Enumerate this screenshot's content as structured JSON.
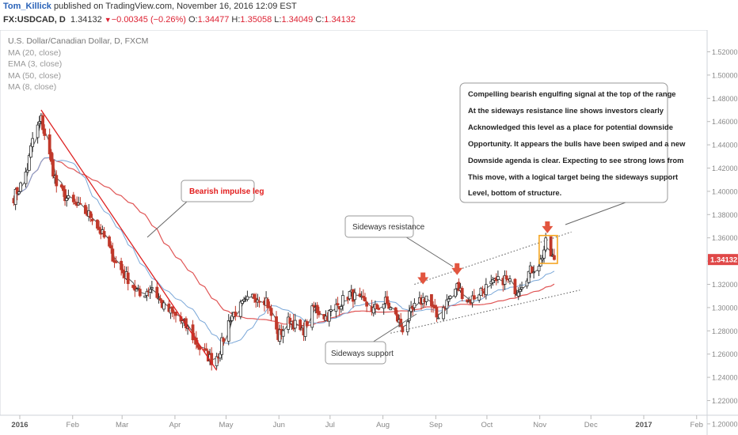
{
  "header": {
    "author": "Tom_Killick",
    "published": "published on TradingView.com, November 16, 2016 12:09 EST",
    "symbol": "FX:USDCAD, D",
    "last": "1.34132",
    "change": "−0.00345 (−0.26%)",
    "o": "1.34477",
    "h": "1.35058",
    "l": "1.34049",
    "c": "1.34132",
    "o_label": "O:",
    "h_label": "H:",
    "l_label": "L:",
    "c_label": "C:"
  },
  "legend": {
    "title": "U.S. Dollar/Canadian Dollar, D, FXCM",
    "studies": [
      "MA (20, close)",
      "EMA (3, close)",
      "MA (50, close)",
      "MA (8, close)"
    ]
  },
  "price_badge": "1.34132",
  "colors": {
    "up": "#2e2e2e",
    "down": "#c0392b",
    "ma50": "#e05555",
    "ma20": "#7aa7d8",
    "ema3": "#555555",
    "trend": "#d22",
    "badge": "#e04848",
    "highlight": "#f5a623",
    "arrow": "#e2553f"
  },
  "annotations": {
    "impulse": "Bearish impulse leg",
    "resistance": "Sideways resistance",
    "support": "Sideways support",
    "main": [
      "Compelling bearish engulfing signal at the top of the range",
      "At the sideways resistance line shows investors clearly",
      "Acknowledged this level as a place for potential downside",
      "Opportunity. It appears the bulls have been swiped and a new",
      "Downside agenda is clear. Expecting to see strong lows from",
      "This move, with a logical target being the sideways support",
      "Level, bottom of structure."
    ]
  },
  "chart_data": {
    "type": "candlestick",
    "symbol": "USDCAD",
    "timeframe": "D",
    "x_tick_labels": [
      "2016",
      "Feb",
      "Mar",
      "Apr",
      "May",
      "Jun",
      "Jul",
      "Aug",
      "Sep",
      "Oct",
      "Nov",
      "Dec",
      "2017",
      "Feb"
    ],
    "y_tick_labels": [
      "1.52000",
      "1.50000",
      "1.48000",
      "1.46000",
      "1.44000",
      "1.42000",
      "1.40000",
      "1.38000",
      "1.36000",
      "1.34000",
      "1.32000",
      "1.30000",
      "1.28000",
      "1.26000",
      "1.24000",
      "1.22000",
      "1.20000"
    ],
    "ylim": [
      1.185,
      1.535
    ],
    "grid": false,
    "last_price": 1.34132,
    "anchors": [
      {
        "date": "2016-01-04",
        "close": 1.395
      },
      {
        "date": "2016-01-08",
        "close": 1.405
      },
      {
        "date": "2016-01-12",
        "close": 1.42
      },
      {
        "date": "2016-01-15",
        "close": 1.445
      },
      {
        "date": "2016-01-20",
        "close": 1.462
      },
      {
        "date": "2016-01-25",
        "close": 1.43
      },
      {
        "date": "2016-01-29",
        "close": 1.405
      },
      {
        "date": "2016-02-05",
        "close": 1.392
      },
      {
        "date": "2016-02-12",
        "close": 1.385
      },
      {
        "date": "2016-02-19",
        "close": 1.378
      },
      {
        "date": "2016-02-26",
        "close": 1.36
      },
      {
        "date": "2016-03-04",
        "close": 1.338
      },
      {
        "date": "2016-03-11",
        "close": 1.325
      },
      {
        "date": "2016-03-18",
        "close": 1.31
      },
      {
        "date": "2016-03-25",
        "close": 1.318
      },
      {
        "date": "2016-04-01",
        "close": 1.3
      },
      {
        "date": "2016-04-08",
        "close": 1.293
      },
      {
        "date": "2016-04-15",
        "close": 1.282
      },
      {
        "date": "2016-04-22",
        "close": 1.265
      },
      {
        "date": "2016-04-29",
        "close": 1.255
      },
      {
        "date": "2016-05-03",
        "close": 1.26
      },
      {
        "date": "2016-05-10",
        "close": 1.292
      },
      {
        "date": "2016-05-17",
        "close": 1.302
      },
      {
        "date": "2016-05-24",
        "close": 1.31
      },
      {
        "date": "2016-05-31",
        "close": 1.307
      },
      {
        "date": "2016-06-07",
        "close": 1.275
      },
      {
        "date": "2016-06-14",
        "close": 1.29
      },
      {
        "date": "2016-06-21",
        "close": 1.278
      },
      {
        "date": "2016-06-28",
        "close": 1.3
      },
      {
        "date": "2016-07-05",
        "close": 1.292
      },
      {
        "date": "2016-07-12",
        "close": 1.302
      },
      {
        "date": "2016-07-19",
        "close": 1.312
      },
      {
        "date": "2016-07-26",
        "close": 1.305
      },
      {
        "date": "2016-08-02",
        "close": 1.298
      },
      {
        "date": "2016-08-09",
        "close": 1.305
      },
      {
        "date": "2016-08-16",
        "close": 1.29
      },
      {
        "date": "2016-08-19",
        "close": 1.282
      },
      {
        "date": "2016-08-26",
        "close": 1.3
      },
      {
        "date": "2016-09-02",
        "close": 1.31
      },
      {
        "date": "2016-09-08",
        "close": 1.292
      },
      {
        "date": "2016-09-14",
        "close": 1.305
      },
      {
        "date": "2016-09-20",
        "close": 1.318
      },
      {
        "date": "2016-09-27",
        "close": 1.305
      },
      {
        "date": "2016-10-04",
        "close": 1.315
      },
      {
        "date": "2016-10-11",
        "close": 1.32
      },
      {
        "date": "2016-10-18",
        "close": 1.325
      },
      {
        "date": "2016-10-25",
        "close": 1.315
      },
      {
        "date": "2016-11-01",
        "close": 1.33
      },
      {
        "date": "2016-11-08",
        "close": 1.34
      },
      {
        "date": "2016-11-11",
        "close": 1.355
      },
      {
        "date": "2016-11-14",
        "close": 1.345
      },
      {
        "date": "2016-11-16",
        "close": 1.341
      }
    ],
    "trendlines": [
      {
        "name": "bearish impulse leg",
        "from": {
          "date": "2016-01-20",
          "price": 1.47
        },
        "to": {
          "date": "2016-05-02",
          "price": 1.246
        }
      },
      {
        "name": "sideways resistance",
        "from": {
          "date": "2016-08-26",
          "price": 1.32
        },
        "to": {
          "date": "2016-11-26",
          "price": 1.365
        }
      },
      {
        "name": "sideways support",
        "from": {
          "date": "2016-08-12",
          "price": 1.278
        },
        "to": {
          "date": "2016-12-01",
          "price": 1.315
        }
      }
    ],
    "moving_averages": [
      "MA (20, close)",
      "EMA (3, close)",
      "MA (50, close)",
      "MA (8, close)"
    ]
  }
}
